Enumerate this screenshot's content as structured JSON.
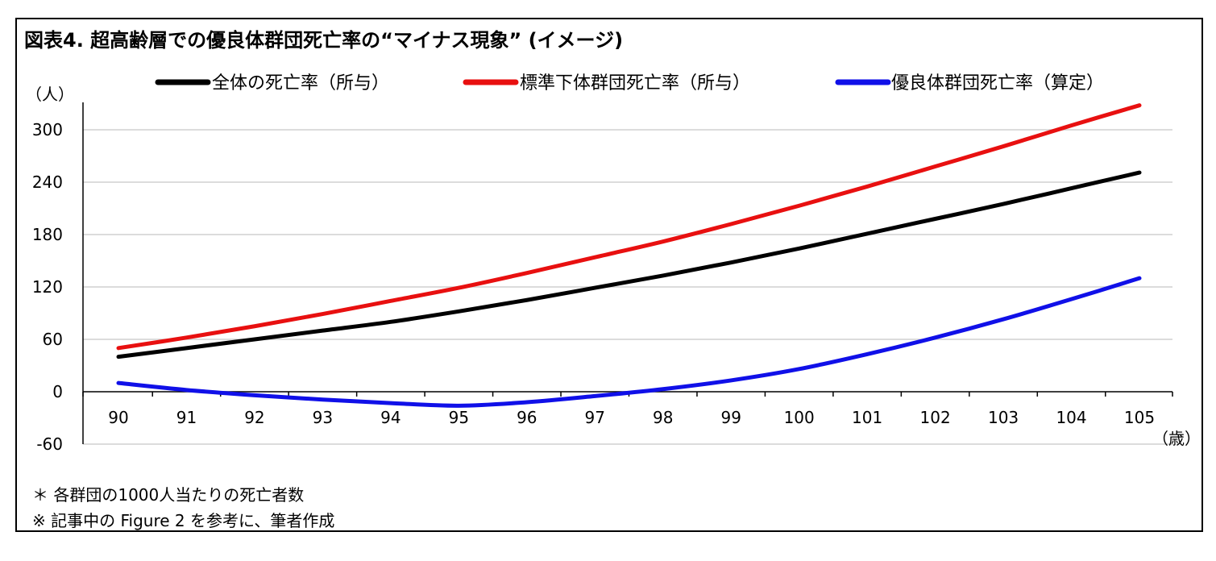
{
  "title": "図表4.  超高齢層での優良体群団死亡率の“マイナス現象” (イメージ)",
  "notes": [
    "＊  各群団の1000人当たりの死亡者数",
    "※ 記事中の Figure 2 を参考に、筆者作成"
  ],
  "chart_data": {
    "type": "line",
    "title": "図表4.  超高齢層での優良体群団死亡率の“マイナス現象” (イメージ)",
    "ylabel": "（人）",
    "xlabel": "（歳）",
    "ylim": [
      -60,
      330
    ],
    "yticks": [
      -60,
      0,
      60,
      120,
      180,
      240,
      300
    ],
    "ytick_labels": [
      "-60",
      "0",
      "60",
      "120",
      "180",
      "240",
      "300"
    ],
    "grid": true,
    "legend_position": "top",
    "x": [
      "90",
      "91",
      "92",
      "93",
      "94",
      "95",
      "96",
      "97",
      "98",
      "99",
      "100",
      "101",
      "102",
      "103",
      "104",
      "105"
    ],
    "series": [
      {
        "name": "全体の死亡率（所与）",
        "color": "#000000",
        "values": [
          40,
          50,
          60,
          70,
          80,
          92,
          105,
          119,
          133,
          148,
          164,
          181,
          198,
          215,
          233,
          251
        ]
      },
      {
        "name": "標準下体群団死亡率（所与）",
        "color": "#e81010",
        "values": [
          50,
          62,
          75,
          89,
          104,
          119,
          136,
          154,
          172,
          192,
          213,
          235,
          258,
          281,
          305,
          328
        ]
      },
      {
        "name": "優良体群団死亡率（算定）",
        "color": "#1010e8",
        "values": [
          10,
          2,
          -4,
          -9,
          -13,
          -16,
          -12,
          -5,
          3,
          13,
          26,
          43,
          62,
          83,
          106,
          130
        ]
      }
    ]
  }
}
